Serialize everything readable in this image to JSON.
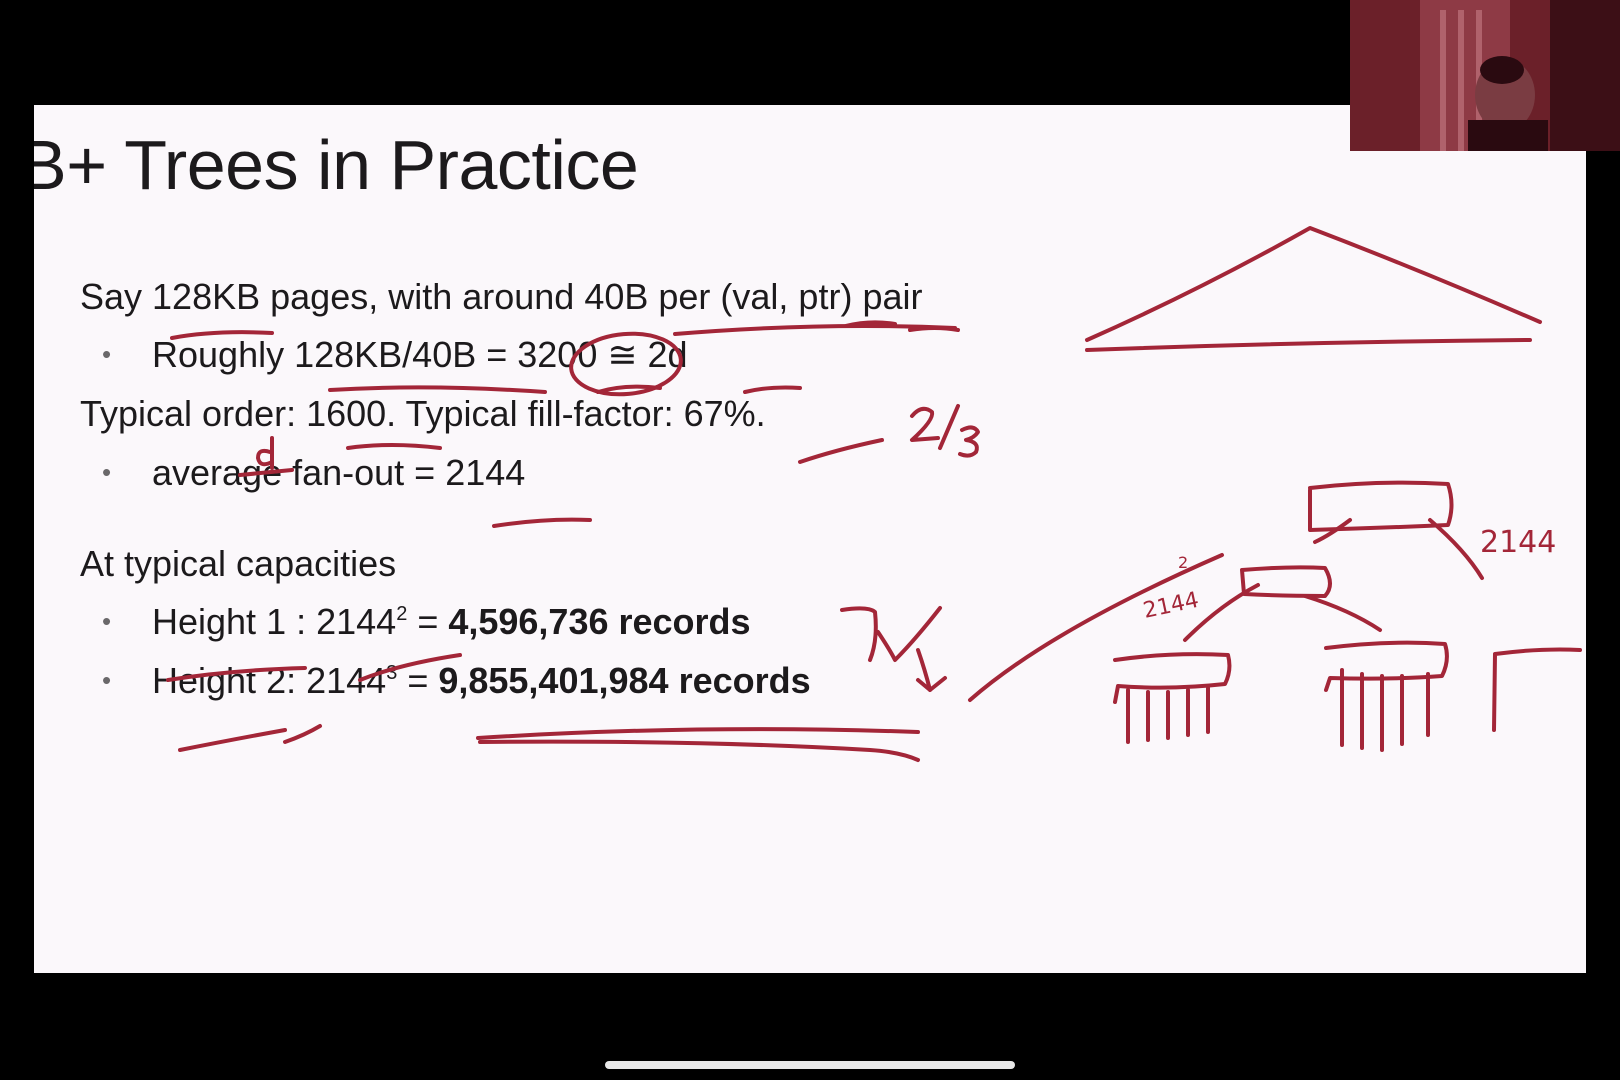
{
  "slide": {
    "title": "B+ Trees in Practice",
    "line1": "Say 128KB pages, with around 40B per (val, ptr) pair",
    "bullet1": "Roughly 128KB/40B = 3200 ≅ 2d",
    "line2": "Typical order: 1600. Typical fill-factor: 67%.",
    "bullet2": "average fan-out = 2144",
    "line3": "At typical capacities",
    "bullet3": {
      "prefix": "Height 1 : 2144",
      "exponent": "2",
      "equals": " = ",
      "result": "4,596,736 records"
    },
    "bullet4": {
      "prefix": "Height 2: 2144",
      "exponent": "3",
      "equals": " = ",
      "result": "9,855,401,984 records"
    },
    "bullet_glyph": "•"
  },
  "annotations": {
    "ink_color": "#a32638",
    "fraction": "2/3",
    "order_letter": "d",
    "fanout_right": "2144",
    "fanout_left": "2144",
    "small_two": "2"
  },
  "webcam": {
    "label": "presenter-webcam"
  }
}
